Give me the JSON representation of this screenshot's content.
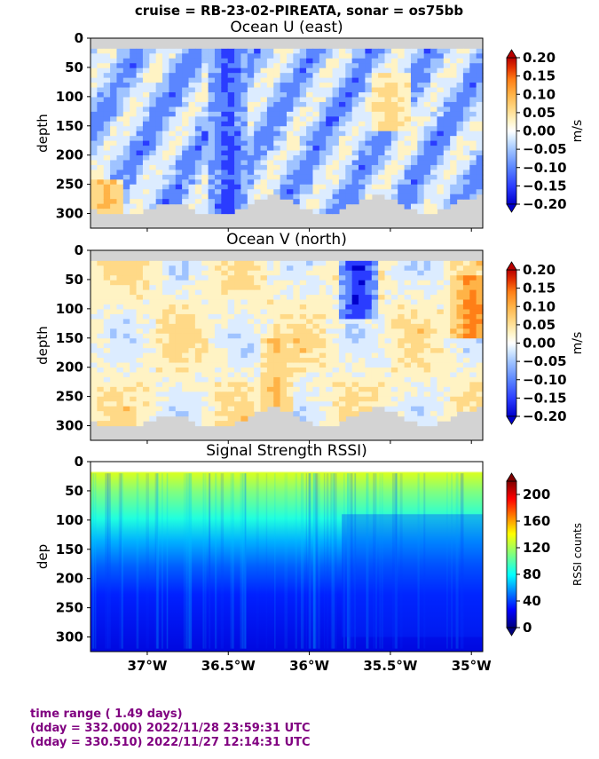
{
  "suptitle": "cruise = RB-23-02-PIREATA,  sonar = os75bb",
  "footer": {
    "line1": "time range ( 1.49 days)",
    "line2": "(dday = 332.000) 2022/11/28 23:59:31 UTC",
    "line3": "(dday = 330.510) 2022/11/27 12:14:31 UTC"
  },
  "colors": {
    "bg_nodata": "#d3d3d3",
    "footer_text": "#800080"
  },
  "chart_data": [
    {
      "type": "heatmap",
      "title": "Ocean U (east)",
      "ylabel": "depth",
      "ylim": [
        325,
        0
      ],
      "yticks": [
        "0",
        "50",
        "100",
        "150",
        "200",
        "250",
        "300"
      ],
      "xlim": [
        -37.35,
        -34.93
      ],
      "colorbar": {
        "label": "m/s",
        "range": [
          -0.2,
          0.2
        ],
        "ticks": [
          "0.20",
          "0.15",
          "0.10",
          "0.05",
          "0.00",
          "−0.05",
          "−0.10",
          "−0.15",
          "−0.20"
        ]
      },
      "features": [
        {
          "lon": -36.5,
          "depth_from": 20,
          "depth_to": 300,
          "value": -0.18
        },
        {
          "lon": -35.5,
          "depth_from": 60,
          "depth_to": 160,
          "value": 0.07
        },
        {
          "lon": -37.25,
          "depth_from": 240,
          "depth_to": 300,
          "value": 0.12
        }
      ]
    },
    {
      "type": "heatmap",
      "title": "Ocean V (north)",
      "ylabel": "depth",
      "ylim": [
        325,
        0
      ],
      "yticks": [
        "0",
        "50",
        "100",
        "150",
        "200",
        "250",
        "300"
      ],
      "xlim": [
        -37.35,
        -34.93
      ],
      "colorbar": {
        "label": "m/s",
        "range": [
          -0.2,
          0.2
        ],
        "ticks": [
          "0.20",
          "0.15",
          "0.10",
          "0.05",
          "0.00",
          "−0.05",
          "−0.10",
          "−0.15",
          "−0.20"
        ]
      },
      "features": [
        {
          "lon": -35.7,
          "depth_from": 20,
          "depth_to": 120,
          "value": -0.2
        },
        {
          "lon": -35.0,
          "depth_from": 40,
          "depth_to": 150,
          "value": 0.18
        },
        {
          "lon": -36.2,
          "depth_from": 150,
          "depth_to": 320,
          "value": 0.1
        }
      ]
    },
    {
      "type": "heatmap",
      "title": "Signal Strength RSSI)",
      "ylabel": "dep",
      "ylim": [
        325,
        0
      ],
      "yticks": [
        "0",
        "50",
        "100",
        "150",
        "200",
        "250",
        "300"
      ],
      "xlim": [
        -37.35,
        -34.93
      ],
      "xticks": [
        {
          "value": -37.0,
          "label": "37°W"
        },
        {
          "value": -36.5,
          "label": "36.5°W"
        },
        {
          "value": -36.0,
          "label": "36°W"
        },
        {
          "value": -35.5,
          "label": "35.5°W"
        },
        {
          "value": -35.0,
          "label": "35°W"
        }
      ],
      "colorbar": {
        "label": "RSSI counts",
        "range": [
          0,
          220
        ],
        "ticks": [
          "200",
          "160",
          "120",
          "80",
          "40",
          "0"
        ]
      },
      "profile": [
        {
          "depth": 20,
          "value": 175
        },
        {
          "depth": 60,
          "value": 140
        },
        {
          "depth": 120,
          "value": 95
        },
        {
          "depth": 180,
          "value": 60
        },
        {
          "depth": 240,
          "value": 35
        },
        {
          "depth": 320,
          "value": 25
        }
      ]
    }
  ]
}
